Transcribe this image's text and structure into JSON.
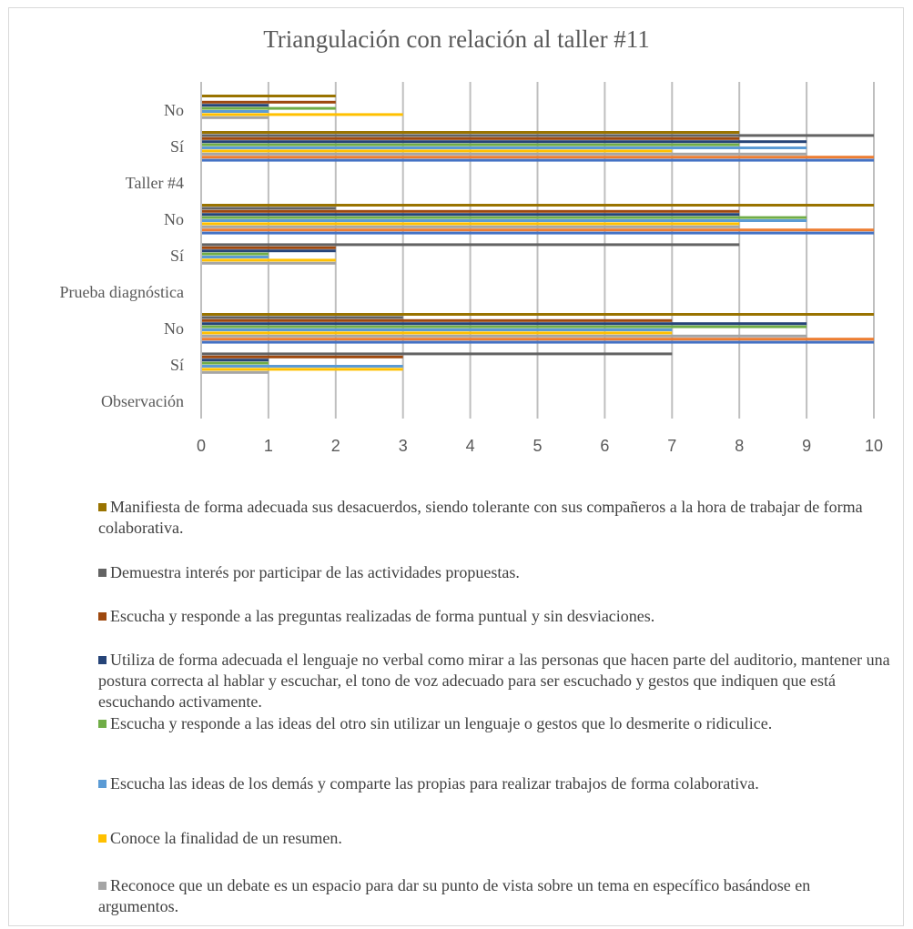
{
  "chart_data": {
    "type": "bar",
    "orientation": "horizontal",
    "title": "Triangulación con relación al taller #11",
    "categories": [
      "Observación",
      "Sí",
      "No",
      "Prueba diagnóstica",
      "Sí",
      "No",
      "Taller #4",
      "Sí",
      "No"
    ],
    "xlim": [
      0,
      10
    ],
    "x_ticks": [
      "0",
      "1",
      "2",
      "3",
      "4",
      "5",
      "6",
      "7",
      "8",
      "9",
      "10"
    ],
    "grid": "vertical",
    "legend_position": "bottom",
    "series": [
      {
        "name": "Reconoce que un debate es un espacio para dar su punto de vista sobre un tema en específico basándose en argumentos.",
        "color": "#a5a5a5",
        "values": [
          null,
          1,
          9,
          null,
          2,
          8,
          null,
          9,
          1
        ]
      },
      {
        "name": "Conoce la finalidad de un resumen.",
        "color": "#ffc000",
        "values": [
          null,
          3,
          7,
          null,
          2,
          8,
          null,
          7,
          3
        ]
      },
      {
        "name": "Escucha las ideas de los demás y comparte las propias para realizar trabajos de forma colaborativa.",
        "color": "#5b9bd5",
        "values": [
          null,
          3,
          7,
          null,
          1,
          9,
          null,
          9,
          1
        ]
      },
      {
        "name": "Escucha y responde a las ideas del otro sin utilizar un lenguaje o gestos que lo desmerite o ridiculice.",
        "color": "#70ad47",
        "values": [
          null,
          1,
          9,
          null,
          1,
          9,
          null,
          8,
          2
        ]
      },
      {
        "name": "Utiliza de forma adecuada el lenguaje no verbal como mirar a las personas que hacen parte del auditorio, mantener una postura correcta al hablar y escuchar, el tono de voz adecuado para ser escuchado y gestos que indiquen que está escuchando activamente.",
        "color": "#264478",
        "values": [
          null,
          1,
          9,
          null,
          2,
          8,
          null,
          9,
          1
        ]
      },
      {
        "name": "Escucha y responde a las preguntas realizadas de forma puntual y sin desviaciones.",
        "color": "#9e480e",
        "values": [
          null,
          3,
          7,
          null,
          2,
          8,
          null,
          8,
          2
        ]
      },
      {
        "name": "Demuestra interés por participar de las actividades propuestas.",
        "color": "#636363",
        "values": [
          null,
          7,
          3,
          null,
          8,
          2,
          null,
          10,
          0
        ]
      },
      {
        "name": "Manifiesta de forma adecuada sus desacuerdos, siendo tolerante con sus compañeros a la hora de trabajar de forma colaborativa.",
        "color": "#997300",
        "values": [
          null,
          0,
          10,
          null,
          0,
          10,
          null,
          8,
          2
        ]
      }
    ],
    "background_bar": {
      "color": "#ed7d31",
      "values": [
        null,
        0,
        10,
        null,
        0,
        10,
        null,
        10,
        0
      ]
    },
    "background_bar_2": {
      "color": "#4472c4",
      "values": [
        null,
        0,
        10,
        null,
        0,
        10,
        null,
        10,
        0
      ]
    }
  }
}
